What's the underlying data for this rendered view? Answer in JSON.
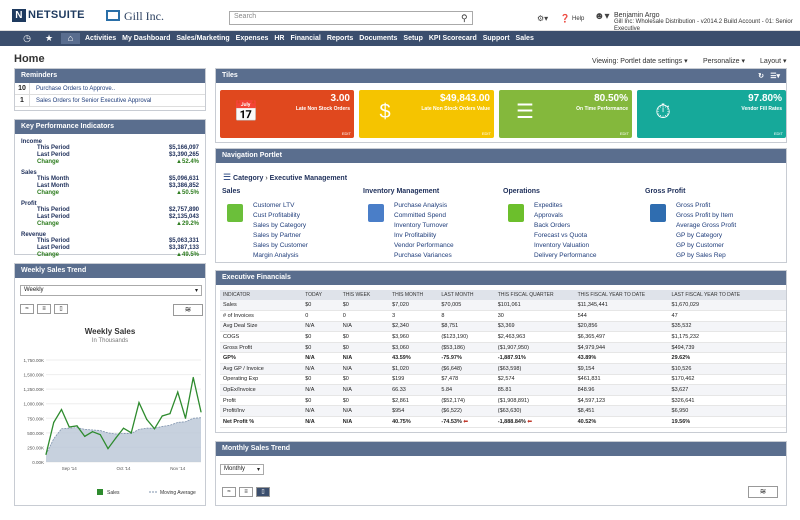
{
  "top": {
    "logo": "NETSUITE",
    "company": "Gill Inc.",
    "search_placeholder": "Search",
    "help": "Help",
    "user_name": "Benjamin Argo",
    "user_detail": "Gill Inc: Wholesale Distribution - v2014.2 Build Account - 01: Senior Executive"
  },
  "nav": {
    "items": [
      "Activities",
      "My Dashboard",
      "Sales/Marketing",
      "Expenses",
      "HR",
      "Financial",
      "Reports",
      "Documents",
      "Setup",
      "KPI Scorecard",
      "Support",
      "Sales"
    ]
  },
  "page": {
    "title": "Home",
    "viewing": "Viewing: Portlet date settings",
    "personalize": "Personalize",
    "layout": "Layout"
  },
  "reminders": {
    "title": "Reminders",
    "items": [
      {
        "count": "10",
        "label": "Purchase Orders to Approve.."
      },
      {
        "count": "1",
        "label": "Sales Orders for Senior Executive Approval"
      }
    ]
  },
  "kpi": {
    "title": "Key Performance Indicators",
    "blocks": [
      {
        "name": "Income",
        "rows": [
          [
            "This Period",
            "$5,166,097"
          ],
          [
            "Last Period",
            "$3,390,265"
          ],
          [
            "Change",
            "52.4%"
          ]
        ]
      },
      {
        "name": "Sales",
        "rows": [
          [
            "This Month",
            "$5,096,631"
          ],
          [
            "Last Month",
            "$3,386,852"
          ],
          [
            "Change",
            "50.5%"
          ]
        ]
      },
      {
        "name": "Profit",
        "rows": [
          [
            "This Period",
            "$2,757,890"
          ],
          [
            "Last Period",
            "$2,135,043"
          ],
          [
            "Change",
            "29.2%"
          ]
        ]
      },
      {
        "name": "Revenue",
        "rows": [
          [
            "This Period",
            "$5,063,331"
          ],
          [
            "Last Period",
            "$3,387,133"
          ],
          [
            "Change",
            "49.5%"
          ]
        ]
      }
    ]
  },
  "weekly": {
    "title": "Weekly Sales Trend",
    "select": "Weekly",
    "chart_title": "Weekly Sales",
    "chart_sub": "In Thousands",
    "legend_sales": "Sales",
    "legend_avg": "Moving Average"
  },
  "chart_data": {
    "type": "line",
    "title": "Weekly Sales",
    "subtitle": "In Thousands",
    "x_ticks": [
      "Sep '14",
      "Oct '14",
      "Nov '14"
    ],
    "y_ticks": [
      "0.00K",
      "250.00K",
      "500.00K",
      "750.00K",
      "1,000.00K",
      "1,250.00K",
      "1,500.00K",
      "1,750.00K"
    ],
    "ylim": [
      0,
      1750
    ],
    "series": [
      {
        "name": "Sales",
        "values": [
          130,
          680,
          900,
          600,
          620,
          440,
          520,
          470,
          230,
          410,
          580,
          500,
          1020,
          730,
          570,
          790,
          830,
          1200,
          750,
          1450,
          860
        ]
      },
      {
        "name": "Moving Average",
        "values": [
          130,
          400,
          570,
          580,
          590,
          560,
          550,
          540,
          500,
          480,
          490,
          490,
          560,
          580,
          580,
          610,
          630,
          680,
          690,
          750,
          760
        ]
      }
    ]
  },
  "tiles": {
    "title": "Tiles",
    "items": [
      {
        "value": "3.00",
        "label": "Late Non Stock Orders",
        "edit": "EDIT",
        "color": "#e0481e",
        "icon": "calendar-icon"
      },
      {
        "value": "$49,843.00",
        "label": "Late Non Stock Orders Value",
        "edit": "EDIT",
        "color": "#f5c400",
        "icon": "money-bag-icon"
      },
      {
        "value": "80.50%",
        "label": "On Time Performance",
        "edit": "EDIT",
        "color": "#84b83c",
        "icon": "list-icon"
      },
      {
        "value": "97.80%",
        "label": "Vendor Fill Rates",
        "edit": "EDIT",
        "color": "#16a99a",
        "icon": "timer-icon"
      }
    ]
  },
  "navportlet": {
    "title": "Navigation Portlet",
    "crumb_cat": "Category",
    "crumb_sub": "Executive Management",
    "cols": [
      {
        "title": "Sales",
        "links": [
          "Customer LTV",
          "Cust Profitability",
          "Sales by Category",
          "Sales by Partner",
          "Sales by Customer",
          "Margin Analysis"
        ]
      },
      {
        "title": "Inventory Management",
        "links": [
          "Purchase Analysis",
          "Committed Spend",
          "Inventory Turnover",
          "Inv Profitability",
          "Vendor Performance",
          "Purchase Variances"
        ]
      },
      {
        "title": "Operations",
        "links": [
          "Expedites",
          "Approvals",
          "Back Orders",
          "Forecast vs Quota",
          "Inventory Valuation",
          "Delivery Performance"
        ]
      },
      {
        "title": "Gross Profit",
        "links": [
          "Gross Profit",
          "Gross Profit by Item",
          "Average Gross Profit",
          "GP by Category",
          "GP by Customer",
          "GP by Sales Rep"
        ]
      }
    ]
  },
  "exec": {
    "title": "Executive Financials",
    "headers": [
      "INDICATOR",
      "TODAY",
      "THIS WEEK",
      "THIS MONTH",
      "LAST MONTH",
      "THIS FISCAL QUARTER",
      "THIS FISCAL YEAR TO DATE",
      "LAST FISCAL YEAR TO DATE"
    ],
    "rows": [
      [
        "Sales",
        "$0",
        "$0",
        "$7,020",
        "$70,005",
        "$101,061",
        "$11,345,441",
        "$1,670,029"
      ],
      [
        "# of Invoices",
        "0",
        "0",
        "3",
        "8",
        "30",
        "544",
        "47"
      ],
      [
        "Avg Deal Size",
        "N/A",
        "N/A",
        "$2,340",
        "$8,751",
        "$3,369",
        "$20,856",
        "$35,532"
      ],
      [
        "COGS",
        "$0",
        "$0",
        "$3,960",
        "($123,190)",
        "$2,463,963",
        "$6,365,497",
        "$1,175,232"
      ],
      [
        "Gross Profit",
        "$0",
        "$0",
        "$3,060",
        "($53,186)",
        "($1,907,950)",
        "$4,979,944",
        "$494,739"
      ],
      [
        "GP%",
        "N/A",
        "N/A",
        "43.59%",
        "-75.97%",
        "-1,887.91%",
        "43.89%",
        "29.62%"
      ],
      [
        "Avg GP / Invoice",
        "N/A",
        "N/A",
        "$1,020",
        "($6,648)",
        "($63,598)",
        "$9,154",
        "$10,526"
      ],
      [
        "Operating Exp",
        "$0",
        "$0",
        "$199",
        "$7,478",
        "$2,574",
        "$461,831",
        "$170,462"
      ],
      [
        "OpEx/Invoice",
        "N/A",
        "N/A",
        "66.33",
        "5.84",
        "85.81",
        "848.96",
        "$3,627"
      ],
      [
        "Profit",
        "$0",
        "$0",
        "$2,861",
        "($52,174)",
        "($1,908,891)",
        "$4,597,123",
        "$326,641"
      ],
      [
        "Profit/Inv",
        "N/A",
        "N/A",
        "$954",
        "($6,522)",
        "($63,630)",
        "$8,451",
        "$6,950"
      ],
      [
        "Net Profit %",
        "N/A",
        "N/A",
        "40.75%",
        "-74.53%",
        "-1,888.84%",
        "40.52%",
        "19.56%"
      ]
    ]
  },
  "monthly": {
    "title": "Monthly Sales Trend",
    "select": "Monthly"
  },
  "colors": {
    "nav": "#3b4e6d",
    "panel_header": "#5a6e8e",
    "green": "#2e7d1f"
  }
}
